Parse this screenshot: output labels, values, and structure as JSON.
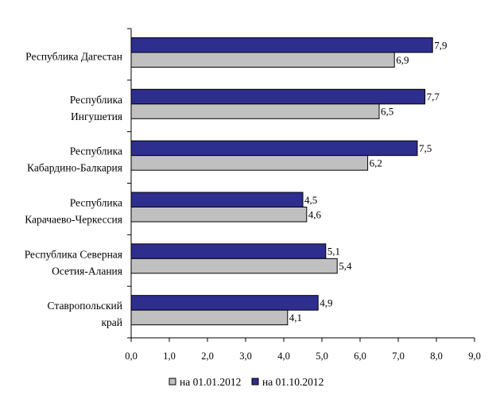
{
  "chart_data": {
    "type": "bar",
    "orientation": "horizontal",
    "categories": [
      [
        "Республика Дагестан"
      ],
      [
        "Республика",
        "Ингушетия"
      ],
      [
        "Республика",
        "Кабардино-Балкария"
      ],
      [
        "Республика",
        "Карачаево-Черкессия"
      ],
      [
        "Республика Северная",
        "Осетия-Алания"
      ],
      [
        "Ставропольский",
        "край"
      ]
    ],
    "series": [
      {
        "name": "на 01.10.2012",
        "color": "#2e2e8f",
        "values": [
          7.9,
          7.7,
          7.5,
          4.5,
          5.1,
          4.9
        ],
        "labels": [
          "7,9",
          "7,7",
          "7,5",
          "4,5",
          "5,1",
          "4,9"
        ]
      },
      {
        "name": "на 01.01.2012",
        "color": "#c0c0c0",
        "values": [
          6.9,
          6.5,
          6.2,
          4.6,
          5.4,
          4.1
        ],
        "labels": [
          "6,9",
          "6,5",
          "6,2",
          "4,6",
          "5,4",
          "4,1"
        ]
      }
    ],
    "xlim": [
      0,
      9
    ],
    "x_ticks": [
      "0,0",
      "1,0",
      "2,0",
      "3,0",
      "4,0",
      "5,0",
      "6,0",
      "7,0",
      "8,0",
      "9,0"
    ],
    "grid": false,
    "legend": {
      "position": "bottom",
      "order": [
        1,
        0
      ]
    }
  }
}
